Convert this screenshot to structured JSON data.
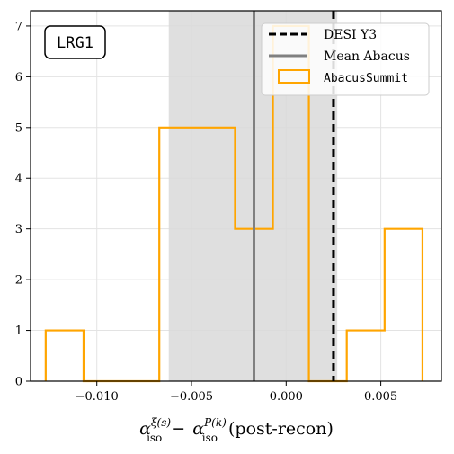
{
  "chart_data": {
    "type": "bar",
    "tag": "LRG1",
    "xlabel": "α_iso^{ξ(s)} − α_iso^{P(k)} (post-recon)",
    "xlabel_parts": {
      "a1": "α",
      "sup1": "ξ(s)",
      "sub1": "iso",
      "minus": "−",
      "a2": "α",
      "sup2": "P(k)",
      "sub2": "iso",
      "suffix": "(post-recon)"
    },
    "ylabel": "",
    "xlim": [
      -0.0135,
      0.0082
    ],
    "ylim": [
      0,
      7.3
    ],
    "x_ticks": [
      -0.01,
      -0.005,
      0.0,
      0.005
    ],
    "x_tick_labels": [
      "−0.010",
      "−0.005",
      "0.000",
      "0.005"
    ],
    "y_ticks": [
      0,
      1,
      2,
      3,
      4,
      5,
      6,
      7
    ],
    "y_tick_labels": [
      "0",
      "1",
      "2",
      "3",
      "4",
      "5",
      "6",
      "7"
    ],
    "grid": true,
    "histogram": {
      "name": "AbacusSummit",
      "color": "#FFA500",
      "bin_edges": [
        -0.0127,
        -0.0107,
        -0.0087,
        -0.0067,
        -0.0047,
        -0.0027,
        -0.0007,
        0.0012,
        0.0032,
        0.0052,
        0.0072
      ],
      "counts": [
        1,
        0,
        0,
        5,
        5,
        3,
        7,
        0,
        1,
        3
      ]
    },
    "band": {
      "x0": -0.0062,
      "x1": 0.0027,
      "color": "#d9d9d9"
    },
    "mean_abacus": {
      "name": "Mean Abacus",
      "x": -0.0017,
      "color": "#808080"
    },
    "desi_y3": {
      "name": "DESI Y3",
      "x": 0.0025,
      "color": "#000000"
    },
    "legend": {
      "position": "top-right",
      "entries": [
        {
          "label": "DESI Y3",
          "style": "dashed-black"
        },
        {
          "label": "Mean Abacus",
          "style": "solid-gray"
        },
        {
          "label": "AbacusSummit",
          "style": "orange-box"
        }
      ]
    }
  }
}
